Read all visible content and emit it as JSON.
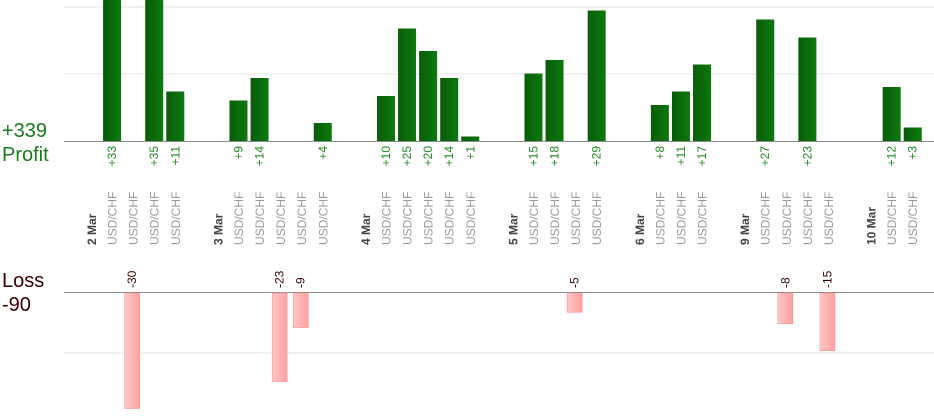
{
  "summary": {
    "profit_total": "+339",
    "profit_label": "Profit",
    "loss_label": "Loss",
    "loss_total": "-90"
  },
  "colors": {
    "profit_bar": "#0b6a0b",
    "profit_text": "#1f8a1f",
    "loss_bar": "#ffb3b3",
    "loss_text": "#3a0000",
    "gridline": "#e6e6e6",
    "axis": "#8a8a8a",
    "date_label": "#444444",
    "pair_label": "#9a9a9a"
  },
  "chart_data": {
    "type": "bar",
    "profit_total": 339,
    "loss_total": -90,
    "columns": [
      {
        "day": "2 Mar"
      },
      {
        "pair": "USD/CHF",
        "value": 33
      },
      {
        "pair": "USD/CHF",
        "value": -30
      },
      {
        "pair": "USD/CHF",
        "value": 35
      },
      {
        "pair": "USD/CHF",
        "value": 11
      },
      {},
      {
        "day": "3 Mar"
      },
      {
        "pair": "USD/CHF",
        "value": 9
      },
      {
        "pair": "USD/CHF",
        "value": 14
      },
      {
        "pair": "USD/CHF",
        "value": -23
      },
      {
        "pair": "USD/CHF",
        "value": -9
      },
      {
        "pair": "USD/CHF",
        "value": 4
      },
      {},
      {
        "day": "4 Mar"
      },
      {
        "pair": "USD/CHF",
        "value": 10
      },
      {
        "pair": "USD/CHF",
        "value": 25
      },
      {
        "pair": "USD/CHF",
        "value": 20
      },
      {
        "pair": "USD/CHF",
        "value": 14
      },
      {
        "pair": "USD/CHF",
        "value": 1
      },
      {},
      {
        "day": "5 Mar"
      },
      {
        "pair": "USD/CHF",
        "value": 15
      },
      {
        "pair": "USD/CHF",
        "value": 18
      },
      {
        "pair": "USD/CHF",
        "value": -5
      },
      {
        "pair": "USD/CHF",
        "value": 29
      },
      {},
      {
        "day": "6 Mar"
      },
      {
        "pair": "USD/CHF",
        "value": 8
      },
      {
        "pair": "USD/CHF",
        "value": 11
      },
      {
        "pair": "USD/CHF",
        "value": 17
      },
      {},
      {
        "day": "9 Mar"
      },
      {
        "pair": "USD/CHF",
        "value": 27
      },
      {
        "pair": "USD/CHF",
        "value": -8
      },
      {
        "pair": "USD/CHF",
        "value": 23
      },
      {
        "pair": "USD/CHF",
        "value": -15
      },
      {},
      {
        "day": "10 Mar"
      },
      {
        "pair": "USD/CHF",
        "value": 12
      },
      {
        "pair": "USD/CHF",
        "value": 3
      }
    ]
  }
}
